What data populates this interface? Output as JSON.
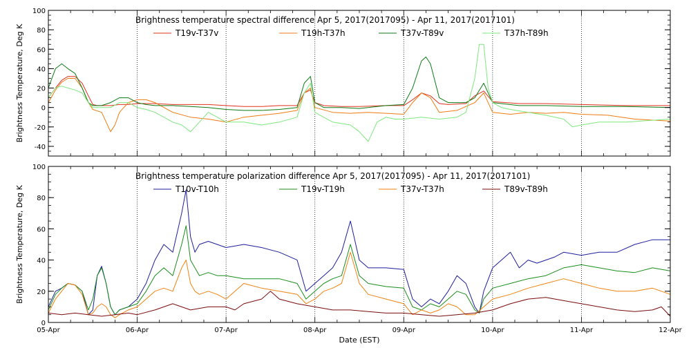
{
  "chart_data": [
    {
      "type": "line",
      "title": "Brightness temperature spectral difference     Apr  5, 2017(2017095) - Apr 11, 2017(2017101)",
      "xlabel": "",
      "ylabel": "Brightness Temperature, Deg K",
      "xlim": [
        0,
        7
      ],
      "ylim": [
        -50,
        100
      ],
      "yticks": [
        -40,
        -20,
        0,
        20,
        40,
        60,
        80,
        100
      ],
      "xticks": [
        0,
        1,
        2,
        3,
        4,
        5,
        6,
        7
      ],
      "xtick_labels": [
        "",
        "",
        "",
        "",
        "",
        "",
        "",
        ""
      ],
      "grid": "vertical dotted at day boundaries",
      "legend_placement": "top",
      "series": [
        {
          "name": "T19v-T37v",
          "color": "#e0301e",
          "x": [
            0,
            0.08,
            0.15,
            0.22,
            0.3,
            0.38,
            0.45,
            0.5,
            0.55,
            0.6,
            0.7,
            0.8,
            0.9,
            1.0,
            1.2,
            1.4,
            1.6,
            1.8,
            2.0,
            2.2,
            2.4,
            2.6,
            2.8,
            2.88,
            2.95,
            3.0,
            3.1,
            3.3,
            3.5,
            3.8,
            4.0,
            4.1,
            4.2,
            4.3,
            4.4,
            4.5,
            4.7,
            4.8,
            4.9,
            5.0,
            5.3,
            5.6,
            6.0,
            6.5,
            7.0
          ],
          "y": [
            10,
            20,
            28,
            32,
            32,
            25,
            12,
            3,
            2,
            2,
            2,
            3,
            3,
            4,
            4,
            3,
            3,
            3,
            2,
            1,
            1,
            2,
            2,
            15,
            18,
            5,
            2,
            1,
            1,
            2,
            2,
            8,
            15,
            12,
            4,
            3,
            4,
            12,
            17,
            6,
            4,
            4,
            3,
            2,
            2
          ]
        },
        {
          "name": "T19h-T37h",
          "color": "#f07a12",
          "x": [
            0,
            0.08,
            0.15,
            0.22,
            0.3,
            0.38,
            0.45,
            0.5,
            0.6,
            0.65,
            0.7,
            0.75,
            0.8,
            0.9,
            1.0,
            1.1,
            1.2,
            1.4,
            1.6,
            1.8,
            2.0,
            2.2,
            2.4,
            2.6,
            2.8,
            2.88,
            2.95,
            3.0,
            3.2,
            3.4,
            3.6,
            3.8,
            4.0,
            4.1,
            4.2,
            4.3,
            4.4,
            4.6,
            4.8,
            4.9,
            5.0,
            5.2,
            5.4,
            5.6,
            5.8,
            6.0,
            6.3,
            6.6,
            7.0
          ],
          "y": [
            5,
            18,
            26,
            30,
            30,
            20,
            5,
            -2,
            -5,
            -15,
            -25,
            -18,
            -5,
            5,
            8,
            8,
            5,
            -5,
            -10,
            -12,
            -15,
            -10,
            -8,
            -6,
            -3,
            15,
            20,
            0,
            -5,
            -6,
            -5,
            -6,
            -7,
            5,
            15,
            10,
            -5,
            -3,
            5,
            15,
            -5,
            -7,
            -5,
            -6,
            -5,
            -7,
            -8,
            -12,
            -14
          ]
        },
        {
          "name": "T37v-T89v",
          "color": "#0c7a12",
          "x": [
            0,
            0.08,
            0.15,
            0.22,
            0.3,
            0.38,
            0.45,
            0.5,
            0.6,
            0.7,
            0.8,
            0.9,
            1.0,
            1.1,
            1.2,
            1.4,
            1.6,
            1.8,
            2.0,
            2.2,
            2.4,
            2.6,
            2.8,
            2.88,
            2.95,
            3.0,
            3.1,
            3.3,
            3.5,
            3.8,
            4.0,
            4.1,
            4.2,
            4.25,
            4.3,
            4.4,
            4.5,
            4.7,
            4.8,
            4.9,
            5.0,
            5.3,
            5.6,
            6.0,
            6.5,
            7.0
          ],
          "y": [
            20,
            40,
            45,
            40,
            35,
            20,
            5,
            2,
            2,
            5,
            10,
            10,
            5,
            3,
            2,
            2,
            1,
            0,
            -2,
            -3,
            -3,
            -2,
            0,
            25,
            32,
            5,
            0,
            0,
            -1,
            2,
            3,
            20,
            48,
            52,
            45,
            10,
            5,
            5,
            10,
            25,
            5,
            2,
            2,
            1,
            1,
            0
          ]
        },
        {
          "name": "T37h-T89h",
          "color": "#7de87d",
          "x": [
            0,
            0.08,
            0.15,
            0.22,
            0.3,
            0.38,
            0.45,
            0.5,
            0.6,
            0.7,
            0.8,
            0.9,
            1.0,
            1.1,
            1.2,
            1.3,
            1.4,
            1.5,
            1.6,
            1.7,
            1.8,
            1.9,
            2.0,
            2.2,
            2.4,
            2.6,
            2.8,
            2.88,
            2.95,
            3.0,
            3.2,
            3.4,
            3.5,
            3.6,
            3.7,
            3.8,
            3.9,
            4.0,
            4.2,
            4.4,
            4.6,
            4.7,
            4.8,
            4.85,
            4.9,
            4.95,
            5.0,
            5.1,
            5.2,
            5.4,
            5.6,
            5.8,
            5.9,
            6.0,
            6.2,
            6.5,
            7.0
          ],
          "y": [
            10,
            20,
            22,
            20,
            18,
            15,
            5,
            0,
            0,
            0,
            5,
            5,
            0,
            -2,
            -5,
            -10,
            -15,
            -18,
            -25,
            -15,
            -5,
            -10,
            -15,
            -15,
            -18,
            -15,
            -10,
            15,
            25,
            -5,
            -15,
            -18,
            -25,
            -35,
            -15,
            -10,
            -12,
            -12,
            -10,
            -12,
            -10,
            -5,
            30,
            65,
            65,
            20,
            5,
            0,
            -2,
            -5,
            -8,
            -12,
            -20,
            -18,
            -15,
            -15,
            -12
          ]
        }
      ]
    },
    {
      "type": "line",
      "title": "Brightness temperature polarization difference    Apr  5, 2017(2017095) - Apr 11, 2017(2017101)",
      "xlabel": "Date (EST)",
      "ylabel": "Brightness Temperature, Deg K",
      "xlim": [
        0,
        7
      ],
      "ylim": [
        0,
        100
      ],
      "yticks": [
        0,
        20,
        40,
        60,
        80,
        100
      ],
      "xticks": [
        0,
        1,
        2,
        3,
        4,
        5,
        6,
        7
      ],
      "xtick_labels": [
        "05-Apr",
        "06-Apr",
        "07-Apr",
        "08-Apr",
        "09-Apr",
        "10-Apr",
        "11-Apr",
        "12-Apr"
      ],
      "grid": "vertical dotted at day boundaries",
      "legend_placement": "top",
      "series": [
        {
          "name": "T10v-T10h",
          "color": "#1c1c9c",
          "x": [
            0,
            0.08,
            0.15,
            0.22,
            0.3,
            0.38,
            0.45,
            0.5,
            0.55,
            0.6,
            0.65,
            0.7,
            0.75,
            0.8,
            0.9,
            1.0,
            1.1,
            1.2,
            1.3,
            1.4,
            1.5,
            1.55,
            1.6,
            1.65,
            1.7,
            1.8,
            1.9,
            2.0,
            2.2,
            2.4,
            2.6,
            2.8,
            2.9,
            3.0,
            3.1,
            3.2,
            3.3,
            3.4,
            3.5,
            3.6,
            3.8,
            4.0,
            4.1,
            4.2,
            4.3,
            4.4,
            4.5,
            4.6,
            4.7,
            4.8,
            4.85,
            4.9,
            5.0,
            5.1,
            5.2,
            5.3,
            5.4,
            5.5,
            5.6,
            5.7,
            5.8,
            6.0,
            6.2,
            6.4,
            6.6,
            6.8,
            7.0
          ],
          "y": [
            10,
            20,
            22,
            25,
            24,
            20,
            5,
            8,
            30,
            36,
            25,
            10,
            5,
            8,
            10,
            15,
            25,
            40,
            50,
            45,
            70,
            85,
            55,
            45,
            50,
            52,
            50,
            48,
            50,
            48,
            45,
            40,
            20,
            25,
            30,
            35,
            45,
            65,
            40,
            35,
            35,
            34,
            15,
            10,
            15,
            12,
            20,
            30,
            25,
            10,
            6,
            20,
            35,
            40,
            45,
            35,
            40,
            38,
            40,
            42,
            45,
            43,
            45,
            45,
            50,
            53,
            53
          ]
        },
        {
          "name": "T19v-T19h",
          "color": "#1a8c1a",
          "x": [
            0,
            0.08,
            0.15,
            0.22,
            0.3,
            0.38,
            0.45,
            0.5,
            0.55,
            0.6,
            0.65,
            0.7,
            0.75,
            0.8,
            0.9,
            1.0,
            1.1,
            1.2,
            1.3,
            1.4,
            1.5,
            1.55,
            1.6,
            1.65,
            1.7,
            1.8,
            1.9,
            2.0,
            2.2,
            2.4,
            2.6,
            2.8,
            2.9,
            3.0,
            3.1,
            3.2,
            3.3,
            3.4,
            3.5,
            3.6,
            3.8,
            4.0,
            4.1,
            4.2,
            4.3,
            4.4,
            4.5,
            4.6,
            4.7,
            4.8,
            4.85,
            4.9,
            5.0,
            5.2,
            5.4,
            5.6,
            5.8,
            6.0,
            6.2,
            6.4,
            6.6,
            6.8,
            7.0
          ],
          "y": [
            8,
            18,
            22,
            25,
            24,
            20,
            8,
            15,
            30,
            35,
            25,
            10,
            5,
            8,
            10,
            12,
            20,
            30,
            35,
            30,
            50,
            62,
            40,
            35,
            30,
            32,
            30,
            30,
            28,
            28,
            28,
            25,
            15,
            20,
            25,
            28,
            30,
            50,
            30,
            25,
            23,
            22,
            10,
            8,
            12,
            10,
            15,
            20,
            18,
            8,
            6,
            15,
            22,
            25,
            28,
            30,
            35,
            37,
            35,
            33,
            32,
            35,
            33
          ]
        },
        {
          "name": "T37v-T37h",
          "color": "#f0820f",
          "x": [
            0,
            0.08,
            0.15,
            0.22,
            0.3,
            0.38,
            0.45,
            0.5,
            0.55,
            0.6,
            0.65,
            0.7,
            0.75,
            0.8,
            0.9,
            1.0,
            1.1,
            1.2,
            1.3,
            1.4,
            1.5,
            1.55,
            1.6,
            1.65,
            1.7,
            1.8,
            1.9,
            2.0,
            2.1,
            2.2,
            2.4,
            2.6,
            2.8,
            2.9,
            3.0,
            3.1,
            3.2,
            3.3,
            3.4,
            3.5,
            3.6,
            3.8,
            4.0,
            4.1,
            4.2,
            4.3,
            4.4,
            4.5,
            4.6,
            4.7,
            4.8,
            4.9,
            5.0,
            5.2,
            5.4,
            5.6,
            5.8,
            6.0,
            6.2,
            6.4,
            6.6,
            6.8,
            7.0
          ],
          "y": [
            6,
            15,
            20,
            25,
            24,
            18,
            5,
            6,
            10,
            12,
            10,
            5,
            3,
            5,
            8,
            10,
            15,
            20,
            22,
            20,
            35,
            40,
            25,
            20,
            18,
            20,
            18,
            15,
            20,
            25,
            22,
            20,
            18,
            12,
            15,
            20,
            22,
            25,
            45,
            25,
            18,
            15,
            12,
            5,
            8,
            6,
            8,
            12,
            10,
            5,
            5,
            10,
            15,
            18,
            22,
            25,
            28,
            25,
            22,
            20,
            20,
            22,
            18
          ]
        },
        {
          "name": "T89v-T89h",
          "color": "#7a0a0a",
          "x": [
            0,
            0.15,
            0.3,
            0.45,
            0.6,
            0.75,
            0.9,
            1.0,
            1.2,
            1.4,
            1.6,
            1.8,
            2.0,
            2.1,
            2.2,
            2.4,
            2.5,
            2.6,
            2.8,
            3.0,
            3.2,
            3.4,
            3.6,
            3.8,
            4.0,
            4.2,
            4.4,
            4.6,
            4.8,
            5.0,
            5.2,
            5.4,
            5.6,
            5.8,
            6.0,
            6.2,
            6.4,
            6.6,
            6.8,
            6.9,
            7.0
          ],
          "y": [
            6,
            5,
            6,
            5,
            4,
            5,
            6,
            5,
            8,
            12,
            8,
            10,
            10,
            8,
            12,
            15,
            20,
            15,
            12,
            10,
            8,
            8,
            7,
            6,
            6,
            5,
            4,
            5,
            6,
            8,
            12,
            15,
            16,
            14,
            12,
            10,
            8,
            7,
            8,
            10,
            4
          ]
        }
      ]
    }
  ]
}
